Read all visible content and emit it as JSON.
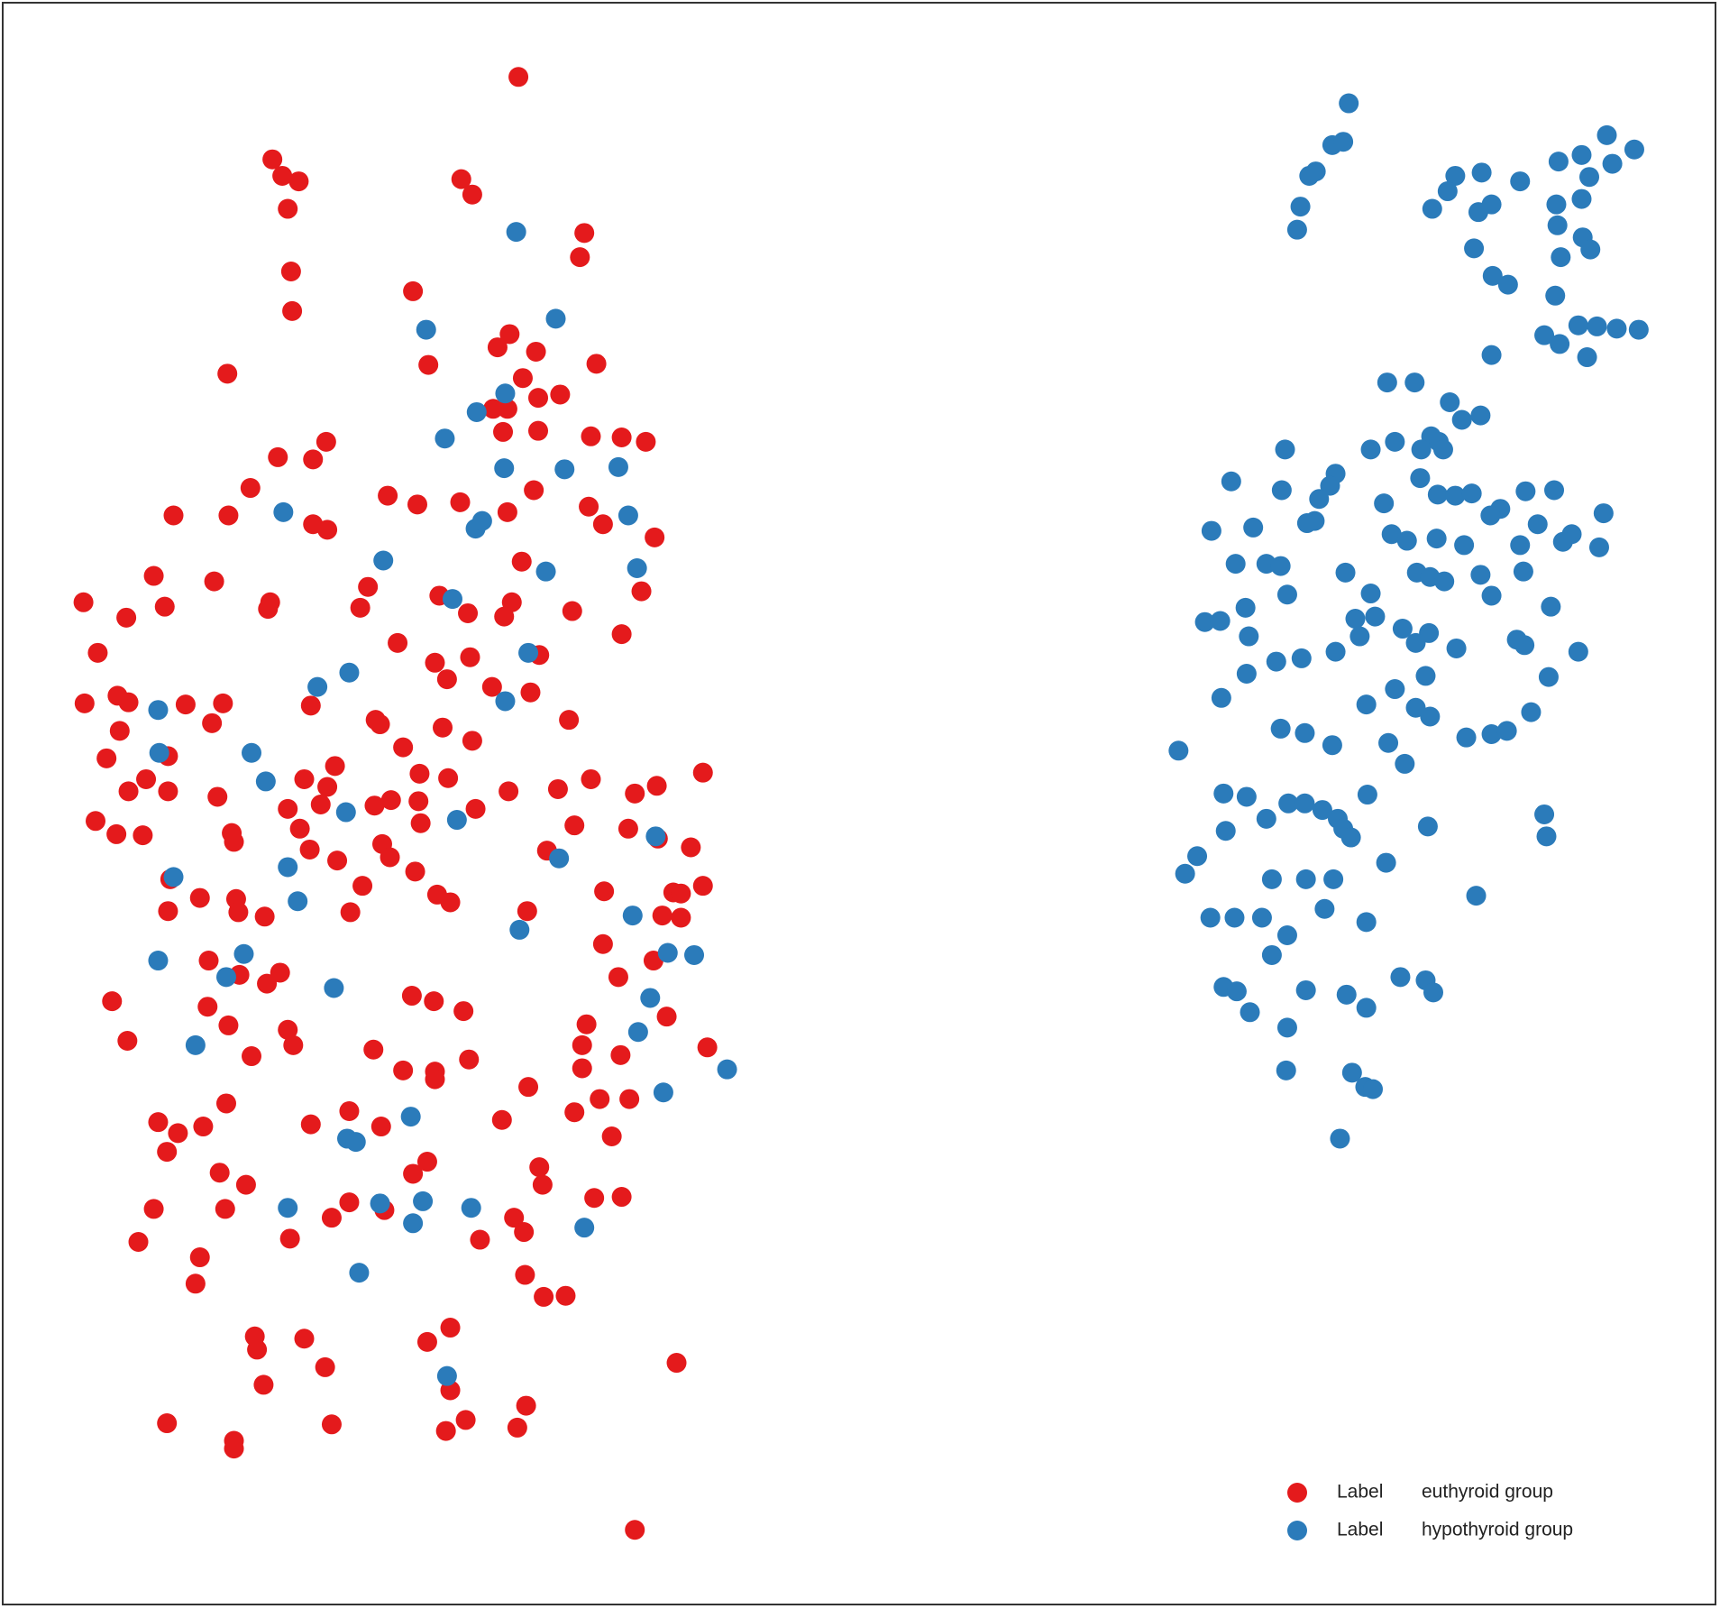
{
  "chart_data": {
    "type": "scatter",
    "legend_label": "Label",
    "legend": "lower right",
    "xlim": [
      0,
      1566
    ],
    "ylim": [
      1464,
      0
    ],
    "series": [
      {
        "name": "euthyroid group",
        "color": "#e41a1c",
        "x": [
          472,
          248,
          257,
          272,
          262,
          420,
          430,
          532,
          528,
          265,
          376,
          266,
          207,
          390,
          464,
          453,
          488,
          543,
          476,
          490,
          510,
          462,
          449,
          490,
          458,
          538,
          566,
          588,
          297,
          285,
          253,
          228,
          158,
          208,
          285,
          298,
          353,
          380,
          419,
          462,
          486,
          536,
          549,
          596,
          140,
          195,
          475,
          335,
          328,
          246,
          244,
          150,
          115,
          76,
          89,
          400,
          426,
          466,
          459,
          521,
          584,
          566,
          362,
          396,
          428,
          407,
          491,
          448,
          483,
          77,
          107,
          117,
          169,
          203,
          283,
          342,
          346,
          403,
          430,
          518,
          193,
          109,
          97,
          153,
          367,
          305,
          382,
          408,
          463,
          508,
          538,
          578,
          598,
          640,
          117,
          133,
          153,
          198,
          277,
          298,
          292,
          262,
          341,
          356,
          381,
          383,
          433,
          87,
          106,
          130,
          211,
          213,
          273,
          282,
          307,
          348,
          355,
          378,
          330,
          398,
          410,
          523,
          572,
          498,
          599,
          629,
          155,
          153,
          182,
          215,
          217,
          241,
          319,
          480,
          550,
          613,
          603,
          620,
          640,
          620,
          549,
          190,
          218,
          243,
          255,
          595,
          563,
          102,
          189,
          208,
          116,
          229,
          262,
          267,
          375,
          395,
          422,
          534,
          530,
          530,
          565,
          607,
          644,
          340,
          367,
          396,
          396,
          427,
          481,
          546,
          573,
          523,
          557,
          206,
          144,
          162,
          185,
          152,
          283,
          318,
          347,
          457,
          389,
          376,
          491,
          494,
          200,
          224,
          140,
          205,
          302,
          318,
          350,
          468,
          477,
          541,
          566,
          126,
          264,
          437,
          182,
          178,
          478,
          495,
          515,
          232,
          234,
          277,
          296,
          240,
          389,
          410,
          410,
          616,
          152,
          213,
          213,
          302,
          406,
          424,
          471,
          479,
          578
        ],
        "values": [
          70,
          145,
          160,
          165,
          190,
          163,
          177,
          212,
          234,
          247,
          265,
          283,
          340,
          332,
          304,
          316,
          320,
          331,
          344,
          362,
          359,
          372,
          372,
          392,
          393,
          397,
          398,
          402,
          402,
          418,
          416,
          444,
          469,
          469,
          477,
          482,
          451,
          459,
          457,
          466,
          446,
          461,
          477,
          489,
          524,
          529,
          511,
          534,
          553,
          548,
          554,
          552,
          562,
          548,
          594,
          542,
          558,
          548,
          561,
          556,
          538,
          577,
          585,
          603,
          598,
          618,
          596,
          625,
          630,
          640,
          633,
          639,
          641,
          640,
          642,
          655,
          659,
          662,
          674,
          655,
          658,
          665,
          690,
          688,
          680,
          697,
          704,
          708,
          720,
          718,
          709,
          722,
          715,
          703,
          720,
          709,
          720,
          725,
          709,
          716,
          732,
          736,
          733,
          728,
          729,
          749,
          736,
          747,
          759,
          760,
          758,
          766,
          754,
          773,
          783,
          768,
          780,
          793,
          806,
          814,
          821,
          751,
          754,
          774,
          763,
          771,
          800,
          829,
          817,
          818,
          830,
          834,
          830,
          829,
          811,
          812,
          833,
          813,
          806,
          835,
          859,
          874,
          887,
          895,
          885,
          874,
          889,
          911,
          916,
          933,
          947,
          961,
          937,
          951,
          906,
          911,
          920,
          932,
          951,
          972,
          960,
          925,
          953,
          955,
          974,
          975,
          982,
          964,
          989,
          1000,
          1000,
          1012,
          1034,
          1004,
          1021,
          1031,
          1025,
          1048,
          1023,
          1011,
          1025,
          1019,
          1057,
          1068,
          1062,
          1078,
          1067,
          1078,
          1100,
          1100,
          1108,
          1094,
          1101,
          1108,
          1121,
          1090,
          1089,
          1130,
          1127,
          1128,
          1144,
          1168,
          1160,
          1180,
          1179,
          1216,
          1228,
          1218,
          1244,
          1260,
          1221,
          1208,
          1265,
          1240,
          1295,
          1311,
          1318,
          1296,
          1302,
          1292,
          1299,
          1279,
          1392
        ]
      },
      {
        "name": "hypothyroid group",
        "color": "#2b7bba",
        "x": [
          470,
          388,
          506,
          460,
          434,
          405,
          459,
          514,
          563,
          258,
          433,
          439,
          572,
          349,
          497,
          580,
          412,
          481,
          318,
          289,
          460,
          144,
          145,
          229,
          242,
          315,
          416,
          597,
          509,
          262,
          158,
          271,
          576,
          473,
          144,
          222,
          206,
          304,
          608,
          632,
          592,
          581,
          178,
          662,
          604,
          374,
          316,
          324,
          262,
          346,
          385,
          429,
          376,
          532,
          327,
          407,
          1228,
          1213,
          1223,
          1192,
          1198,
          1184,
          1181,
          1325,
          1349,
          1318,
          1304,
          1358,
          1346,
          1384,
          1419,
          1440,
          1463,
          1488,
          1468,
          1447,
          1417,
          1440,
          1418,
          1441,
          1342,
          1421,
          1448,
          1359,
          1373,
          1416,
          1406,
          1420,
          1437,
          1454,
          1472,
          1492,
          1445,
          1358,
          1263,
          1288,
          1320,
          1331,
          1348,
          1303,
          1310,
          1314,
          1270,
          1248,
          1294,
          1170,
          1216,
          1211,
          1121,
          1167,
          1201,
          1197,
          1190,
          1293,
          1309,
          1325,
          1340,
          1389,
          1415,
          1460,
          1260,
          1366,
          1357,
          1400,
          1431,
          1423,
          1456,
          1103,
          1141,
          1267,
          1281,
          1308,
          1333,
          1384,
          1125,
          1153,
          1166,
          1225,
          1290,
          1302,
          1315,
          1387,
          1348,
          1172,
          1248,
          1358,
          1412,
          1097,
          1111,
          1134,
          1234,
          1252,
          1137,
          1238,
          1277,
          1301,
          1289,
          1381,
          1388,
          1326,
          1162,
          1185,
          1216,
          1135,
          1298,
          1437,
          1410,
          1112,
          1270,
          1244,
          1289,
          1302,
          1394,
          1166,
          1188,
          1213,
          1264,
          1335,
          1358,
          1372,
          1073,
          1279,
          1114,
          1135,
          1245,
          1173,
          1188,
          1204,
          1218,
          1223,
          1230,
          1153,
          1116,
          1300,
          1406,
          1408,
          1090,
          1079,
          1262,
          1158,
          1189,
          1214,
          1344,
          1102,
          1124,
          1149,
          1206,
          1244,
          1172,
          1158,
          1114,
          1126,
          1138,
          1189,
          1226,
          1244,
          1275,
          1298,
          1305,
          1172,
          1171,
          1231,
          1243,
          1250,
          1220
        ],
        "values": [
          211,
          300,
          290,
          358,
          375,
          399,
          426,
          427,
          425,
          466,
          481,
          474,
          469,
          510,
          520,
          517,
          545,
          594,
          612,
          625,
          638,
          646,
          685,
          685,
          711,
          739,
          746,
          761,
          781,
          789,
          798,
          820,
          833,
          846,
          874,
          868,
          889,
          899,
          867,
          869,
          908,
          939,
          951,
          973,
          994,
          1016,
          1036,
          1039,
          1099,
          1095,
          1093,
          1099,
          1113,
          1117,
          1158,
          1252,
          94,
          132,
          129,
          160,
          156,
          188,
          209,
          160,
          157,
          174,
          190,
          186,
          193,
          165,
          147,
          141,
          123,
          136,
          149,
          161,
          186,
          181,
          205,
          216,
          226,
          234,
          227,
          251,
          259,
          269,
          305,
          313,
          296,
          297,
          299,
          300,
          325,
          323,
          348,
          348,
          366,
          382,
          378,
          397,
          402,
          409,
          402,
          409,
          409,
          409,
          431,
          442,
          438,
          446,
          454,
          474,
          476,
          435,
          450,
          451,
          449,
          447,
          446,
          467,
          458,
          463,
          469,
          477,
          486,
          493,
          498,
          483,
          480,
          486,
          492,
          490,
          496,
          496,
          513,
          513,
          515,
          521,
          521,
          525,
          529,
          520,
          523,
          541,
          540,
          542,
          552,
          566,
          565,
          553,
          563,
          561,
          579,
          579,
          572,
          576,
          585,
          582,
          587,
          590,
          602,
          599,
          593,
          613,
          615,
          593,
          616,
          635,
          627,
          641,
          644,
          652,
          648,
          663,
          667,
          678,
          676,
          671,
          668,
          665,
          683,
          695,
          722,
          725,
          723,
          731,
          731,
          737,
          745,
          754,
          762,
          745,
          756,
          752,
          741,
          761,
          779,
          795,
          785,
          800,
          800,
          800,
          815,
          835,
          835,
          835,
          827,
          839,
          851,
          869,
          898,
          902,
          921,
          901,
          905,
          917,
          889,
          892,
          903,
          935,
          974,
          976,
          989,
          991,
          1036
        ]
      }
    ]
  }
}
